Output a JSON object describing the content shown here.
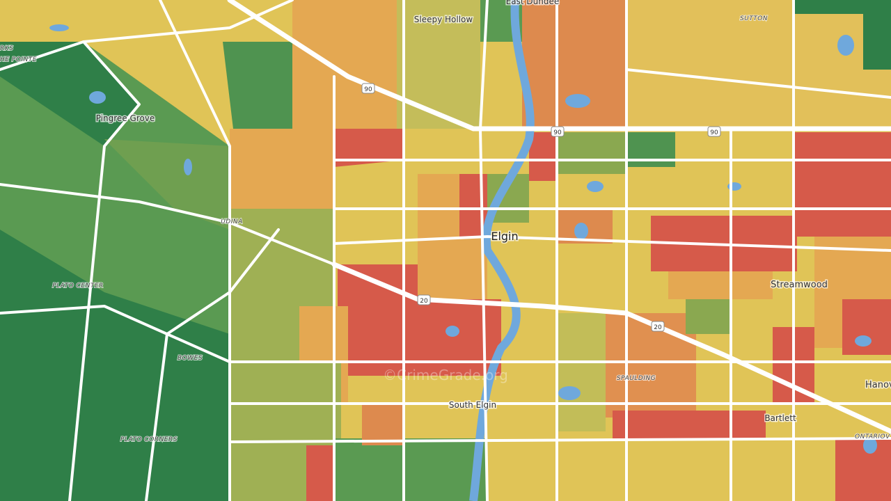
{
  "places": [
    {
      "label": "East Dundee"
    },
    {
      "label": "Sleepy Hollow"
    },
    {
      "label": "SUTTON"
    },
    {
      "label": "RKS"
    },
    {
      "label": "HE POINTE"
    },
    {
      "label": "Pingree Grove"
    },
    {
      "label": "UDINA"
    },
    {
      "label": "Elgin"
    },
    {
      "label": "PLATO CENTER"
    },
    {
      "label": "Streamwood"
    },
    {
      "label": "BOWES"
    },
    {
      "label": "SPAULDING"
    },
    {
      "label": "South Elgin"
    },
    {
      "label": "Bartlett"
    },
    {
      "label": "Hanov"
    },
    {
      "label": "ONTARIOV"
    },
    {
      "label": "PLATO CORNERS"
    }
  ],
  "shields": [
    {
      "label": "90"
    },
    {
      "label": "90"
    },
    {
      "label": "90"
    },
    {
      "label": "20"
    },
    {
      "label": "20"
    }
  ],
  "watermark": "©CrimeGrade.org"
}
